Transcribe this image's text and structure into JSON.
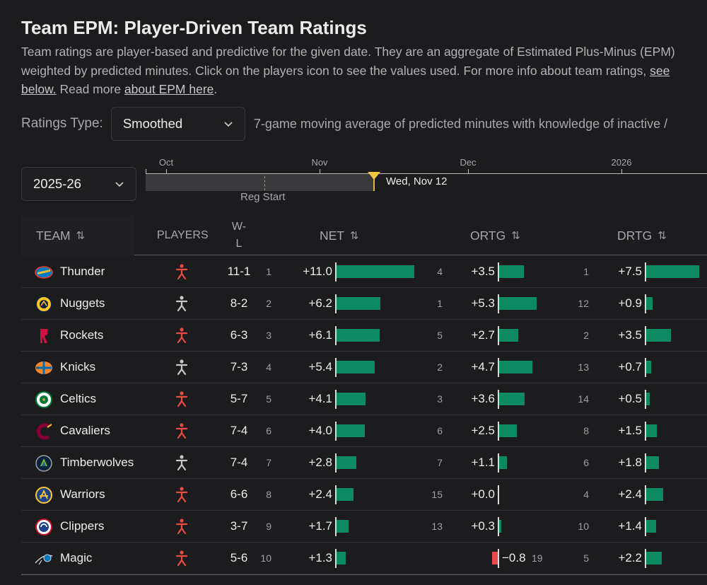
{
  "title": "Team EPM: Player-Driven Team Ratings",
  "description": {
    "part1": "Team ratings are player-based and predictive for the given date. They are an aggregate of Estimated Plus-Minus (EPM) weighted by predicted minutes. Click on the players icon to see the values used. For more info about team ratings, ",
    "link1": "see below.",
    "part2": " Read more ",
    "link2": "about EPM here",
    "part3": "."
  },
  "ratings_type": {
    "label": "Ratings Type:",
    "selected": "Smoothed",
    "note": "7-game moving average of predicted minutes with knowledge of inactive /"
  },
  "season": {
    "selected": "2025-26"
  },
  "timeline": {
    "months": [
      "Oct",
      "Nov",
      "Dec",
      "2026"
    ],
    "reg_start_label": "Reg Start",
    "current_date": "Wed, Nov 12",
    "progress": 0.41
  },
  "table": {
    "headers": {
      "team": "TEAM",
      "players": "PLAYERS",
      "wl_top": "W-",
      "wl_bottom": "L",
      "net": "NET",
      "ortg": "ORTG",
      "drtg": "DRTG",
      "sort_icon": "⇅"
    },
    "rows": [
      {
        "team": "Thunder",
        "logo": "thunder",
        "players_active": true,
        "wl": "11-1",
        "net_rank": "1",
        "net": "+11.0",
        "net_value": 11.0,
        "ortg_rank": "4",
        "ortg": "+3.5",
        "ortg_value": 3.5,
        "drtg_rank": "1",
        "drtg": "+7.5",
        "drtg_value": 7.5
      },
      {
        "team": "Nuggets",
        "logo": "nuggets",
        "players_active": false,
        "wl": "8-2",
        "net_rank": "2",
        "net": "+6.2",
        "net_value": 6.2,
        "ortg_rank": "1",
        "ortg": "+5.3",
        "ortg_value": 5.3,
        "drtg_rank": "12",
        "drtg": "+0.9",
        "drtg_value": 0.9
      },
      {
        "team": "Rockets",
        "logo": "rockets",
        "players_active": true,
        "wl": "6-3",
        "net_rank": "3",
        "net": "+6.1",
        "net_value": 6.1,
        "ortg_rank": "5",
        "ortg": "+2.7",
        "ortg_value": 2.7,
        "drtg_rank": "2",
        "drtg": "+3.5",
        "drtg_value": 3.5
      },
      {
        "team": "Knicks",
        "logo": "knicks",
        "players_active": false,
        "wl": "7-3",
        "net_rank": "4",
        "net": "+5.4",
        "net_value": 5.4,
        "ortg_rank": "2",
        "ortg": "+4.7",
        "ortg_value": 4.7,
        "drtg_rank": "13",
        "drtg": "+0.7",
        "drtg_value": 0.7
      },
      {
        "team": "Celtics",
        "logo": "celtics",
        "players_active": true,
        "wl": "5-7",
        "net_rank": "5",
        "net": "+4.1",
        "net_value": 4.1,
        "ortg_rank": "3",
        "ortg": "+3.6",
        "ortg_value": 3.6,
        "drtg_rank": "14",
        "drtg": "+0.5",
        "drtg_value": 0.5
      },
      {
        "team": "Cavaliers",
        "logo": "cavaliers",
        "players_active": true,
        "wl": "7-4",
        "net_rank": "6",
        "net": "+4.0",
        "net_value": 4.0,
        "ortg_rank": "6",
        "ortg": "+2.5",
        "ortg_value": 2.5,
        "drtg_rank": "8",
        "drtg": "+1.5",
        "drtg_value": 1.5
      },
      {
        "team": "Timberwolves",
        "logo": "timberwolves",
        "players_active": false,
        "wl": "7-4",
        "net_rank": "7",
        "net": "+2.8",
        "net_value": 2.8,
        "ortg_rank": "7",
        "ortg": "+1.1",
        "ortg_value": 1.1,
        "drtg_rank": "6",
        "drtg": "+1.8",
        "drtg_value": 1.8
      },
      {
        "team": "Warriors",
        "logo": "warriors",
        "players_active": true,
        "wl": "6-6",
        "net_rank": "8",
        "net": "+2.4",
        "net_value": 2.4,
        "ortg_rank": "15",
        "ortg": "+0.0",
        "ortg_value": 0.0,
        "drtg_rank": "4",
        "drtg": "+2.4",
        "drtg_value": 2.4
      },
      {
        "team": "Clippers",
        "logo": "clippers",
        "players_active": true,
        "wl": "3-7",
        "net_rank": "9",
        "net": "+1.7",
        "net_value": 1.7,
        "ortg_rank": "13",
        "ortg": "+0.3",
        "ortg_value": 0.3,
        "drtg_rank": "10",
        "drtg": "+1.4",
        "drtg_value": 1.4
      },
      {
        "team": "Magic",
        "logo": "magic",
        "players_active": true,
        "wl": "5-6",
        "net_rank": "10",
        "net": "+1.3",
        "net_value": 1.3,
        "ortg_rank": "19",
        "ortg": "−0.8",
        "ortg_value": -0.8,
        "drtg_rank": "5",
        "drtg": "+2.2",
        "drtg_value": 2.2
      }
    ]
  },
  "colors": {
    "positive_bar": "#0c8a61",
    "negative_bar": "#e8494d",
    "active_player_icon": "#ea4a40",
    "inactive_player_icon": "#c8c8c8"
  }
}
